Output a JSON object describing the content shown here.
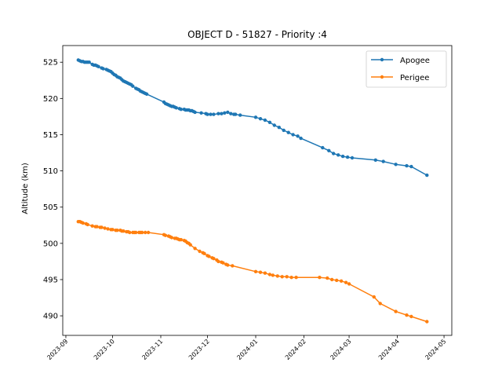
{
  "chart_data": {
    "type": "line",
    "title": "OBJECT D - 51827 - Priority :4",
    "xlabel": "",
    "ylabel": "Altitude (km)",
    "xlim": [
      "2023-08-30",
      "2024-05-06"
    ],
    "ylim": [
      487.3,
      527.3
    ],
    "x_ticks": [
      "2023-09",
      "2023-10",
      "2023-11",
      "2023-12",
      "2024-01",
      "2024-02",
      "2024-03",
      "2024-04",
      "2024-05"
    ],
    "y_ticks": [
      490,
      495,
      500,
      505,
      510,
      515,
      520,
      525
    ],
    "grid": false,
    "legend_position": "top-right",
    "series": [
      {
        "name": "Apogee",
        "color": "#1f77b4",
        "points": [
          [
            "2023-09-09",
            525.3
          ],
          [
            "2023-09-10",
            525.2
          ],
          [
            "2023-09-11",
            525.1
          ],
          [
            "2023-09-12",
            525.1
          ],
          [
            "2023-09-13",
            525.0
          ],
          [
            "2023-09-14",
            525.0
          ],
          [
            "2023-09-15",
            525.0
          ],
          [
            "2023-09-16",
            525.0
          ],
          [
            "2023-09-18",
            524.7
          ],
          [
            "2023-09-19",
            524.6
          ],
          [
            "2023-09-20",
            524.6
          ],
          [
            "2023-09-21",
            524.5
          ],
          [
            "2023-09-22",
            524.4
          ],
          [
            "2023-09-24",
            524.2
          ],
          [
            "2023-09-25",
            524.1
          ],
          [
            "2023-09-27",
            524.0
          ],
          [
            "2023-09-28",
            523.9
          ],
          [
            "2023-09-29",
            523.8
          ],
          [
            "2023-09-30",
            523.7
          ],
          [
            "2023-10-01",
            523.5
          ],
          [
            "2023-10-02",
            523.3
          ],
          [
            "2023-10-03",
            523.2
          ],
          [
            "2023-10-04",
            523.0
          ],
          [
            "2023-10-05",
            522.9
          ],
          [
            "2023-10-06",
            522.8
          ],
          [
            "2023-10-07",
            522.6
          ],
          [
            "2023-10-08",
            522.4
          ],
          [
            "2023-10-09",
            522.3
          ],
          [
            "2023-10-10",
            522.2
          ],
          [
            "2023-10-11",
            522.1
          ],
          [
            "2023-10-12",
            522.0
          ],
          [
            "2023-10-13",
            521.9
          ],
          [
            "2023-10-14",
            521.7
          ],
          [
            "2023-10-16",
            521.4
          ],
          [
            "2023-10-17",
            521.3
          ],
          [
            "2023-10-18",
            521.2
          ],
          [
            "2023-10-19",
            521.0
          ],
          [
            "2023-10-20",
            520.9
          ],
          [
            "2023-10-21",
            520.8
          ],
          [
            "2023-10-22",
            520.7
          ],
          [
            "2023-10-23",
            520.6
          ],
          [
            "2023-11-03",
            519.5
          ],
          [
            "2023-11-04",
            519.3
          ],
          [
            "2023-11-05",
            519.2
          ],
          [
            "2023-11-06",
            519.1
          ],
          [
            "2023-11-07",
            519.0
          ],
          [
            "2023-11-08",
            518.9
          ],
          [
            "2023-11-09",
            518.9
          ],
          [
            "2023-11-10",
            518.8
          ],
          [
            "2023-11-11",
            518.7
          ],
          [
            "2023-11-13",
            518.6
          ],
          [
            "2023-11-14",
            518.5
          ],
          [
            "2023-11-16",
            518.5
          ],
          [
            "2023-11-17",
            518.4
          ],
          [
            "2023-11-18",
            518.4
          ],
          [
            "2023-11-19",
            518.4
          ],
          [
            "2023-11-20",
            518.3
          ],
          [
            "2023-11-21",
            518.3
          ],
          [
            "2023-11-22",
            518.2
          ],
          [
            "2023-11-23",
            518.1
          ],
          [
            "2023-11-27",
            518.0
          ],
          [
            "2023-11-30",
            517.9
          ],
          [
            "2023-12-01",
            517.8
          ],
          [
            "2023-12-03",
            517.8
          ],
          [
            "2023-12-05",
            517.8
          ],
          [
            "2023-12-08",
            517.9
          ],
          [
            "2023-12-10",
            517.9
          ],
          [
            "2023-12-12",
            518.0
          ],
          [
            "2023-12-14",
            518.1
          ],
          [
            "2023-12-16",
            517.9
          ],
          [
            "2023-12-18",
            517.8
          ],
          [
            "2023-12-19",
            517.8
          ],
          [
            "2023-12-22",
            517.7
          ],
          [
            "2024-01-01",
            517.4
          ],
          [
            "2024-01-04",
            517.2
          ],
          [
            "2024-01-07",
            517.0
          ],
          [
            "2024-01-10",
            516.7
          ],
          [
            "2024-01-13",
            516.3
          ],
          [
            "2024-01-16",
            516.0
          ],
          [
            "2024-01-19",
            515.6
          ],
          [
            "2024-01-22",
            515.3
          ],
          [
            "2024-01-25",
            515.0
          ],
          [
            "2024-01-28",
            514.8
          ],
          [
            "2024-01-30",
            514.5
          ],
          [
            "2024-02-13",
            513.2
          ],
          [
            "2024-02-17",
            512.8
          ],
          [
            "2024-02-20",
            512.4
          ],
          [
            "2024-02-23",
            512.2
          ],
          [
            "2024-02-26",
            512.0
          ],
          [
            "2024-02-29",
            511.9
          ],
          [
            "2024-03-03",
            511.8
          ],
          [
            "2024-03-18",
            511.5
          ],
          [
            "2024-03-23",
            511.3
          ],
          [
            "2024-03-31",
            510.9
          ],
          [
            "2024-04-07",
            510.7
          ],
          [
            "2024-04-10",
            510.6
          ],
          [
            "2024-04-20",
            509.4
          ]
        ]
      },
      {
        "name": "Perigee",
        "color": "#ff7f0e",
        "points": [
          [
            "2023-09-09",
            503.0
          ],
          [
            "2023-09-10",
            503.0
          ],
          [
            "2023-09-11",
            502.9
          ],
          [
            "2023-09-12",
            502.8
          ],
          [
            "2023-09-14",
            502.7
          ],
          [
            "2023-09-15",
            502.6
          ],
          [
            "2023-09-18",
            502.4
          ],
          [
            "2023-09-20",
            502.3
          ],
          [
            "2023-09-21",
            502.3
          ],
          [
            "2023-09-23",
            502.2
          ],
          [
            "2023-09-24",
            502.2
          ],
          [
            "2023-09-26",
            502.1
          ],
          [
            "2023-09-28",
            502.0
          ],
          [
            "2023-09-30",
            501.9
          ],
          [
            "2023-10-01",
            501.9
          ],
          [
            "2023-10-03",
            501.8
          ],
          [
            "2023-10-04",
            501.8
          ],
          [
            "2023-10-06",
            501.8
          ],
          [
            "2023-10-07",
            501.7
          ],
          [
            "2023-10-08",
            501.7
          ],
          [
            "2023-10-10",
            501.6
          ],
          [
            "2023-10-11",
            501.6
          ],
          [
            "2023-10-12",
            501.5
          ],
          [
            "2023-10-14",
            501.5
          ],
          [
            "2023-10-15",
            501.5
          ],
          [
            "2023-10-16",
            501.5
          ],
          [
            "2023-10-18",
            501.5
          ],
          [
            "2023-10-19",
            501.5
          ],
          [
            "2023-10-20",
            501.5
          ],
          [
            "2023-10-22",
            501.5
          ],
          [
            "2023-10-24",
            501.5
          ],
          [
            "2023-11-03",
            501.2
          ],
          [
            "2023-11-04",
            501.1
          ],
          [
            "2023-11-06",
            501.0
          ],
          [
            "2023-11-07",
            500.9
          ],
          [
            "2023-11-08",
            500.8
          ],
          [
            "2023-11-10",
            500.7
          ],
          [
            "2023-11-11",
            500.7
          ],
          [
            "2023-11-12",
            500.6
          ],
          [
            "2023-11-13",
            500.5
          ],
          [
            "2023-11-14",
            500.5
          ],
          [
            "2023-11-16",
            500.4
          ],
          [
            "2023-11-17",
            500.3
          ],
          [
            "2023-11-18",
            500.1
          ],
          [
            "2023-11-19",
            500.0
          ],
          [
            "2023-11-20",
            499.8
          ],
          [
            "2023-11-23",
            499.3
          ],
          [
            "2023-11-26",
            498.9
          ],
          [
            "2023-11-28",
            498.7
          ],
          [
            "2023-11-29",
            498.6
          ],
          [
            "2023-12-01",
            498.3
          ],
          [
            "2023-12-02",
            498.2
          ],
          [
            "2023-12-04",
            498.0
          ],
          [
            "2023-12-05",
            497.9
          ],
          [
            "2023-12-07",
            497.7
          ],
          [
            "2023-12-08",
            497.5
          ],
          [
            "2023-12-10",
            497.4
          ],
          [
            "2023-12-11",
            497.3
          ],
          [
            "2023-12-13",
            497.1
          ],
          [
            "2023-12-14",
            497.0
          ],
          [
            "2023-12-17",
            496.9
          ],
          [
            "2024-01-01",
            496.1
          ],
          [
            "2024-01-04",
            496.0
          ],
          [
            "2024-01-07",
            495.9
          ],
          [
            "2024-01-10",
            495.7
          ],
          [
            "2024-01-12",
            495.6
          ],
          [
            "2024-01-15",
            495.5
          ],
          [
            "2024-01-18",
            495.4
          ],
          [
            "2024-01-21",
            495.4
          ],
          [
            "2024-01-24",
            495.3
          ],
          [
            "2024-01-27",
            495.3
          ],
          [
            "2024-02-11",
            495.3
          ],
          [
            "2024-02-16",
            495.2
          ],
          [
            "2024-02-19",
            495.0
          ],
          [
            "2024-02-22",
            494.9
          ],
          [
            "2024-02-25",
            494.8
          ],
          [
            "2024-02-28",
            494.6
          ],
          [
            "2024-03-01",
            494.4
          ],
          [
            "2024-03-17",
            492.6
          ],
          [
            "2024-03-21",
            491.7
          ],
          [
            "2024-03-31",
            490.6
          ],
          [
            "2024-04-07",
            490.1
          ],
          [
            "2024-04-10",
            489.9
          ],
          [
            "2024-04-20",
            489.2
          ]
        ]
      }
    ]
  }
}
